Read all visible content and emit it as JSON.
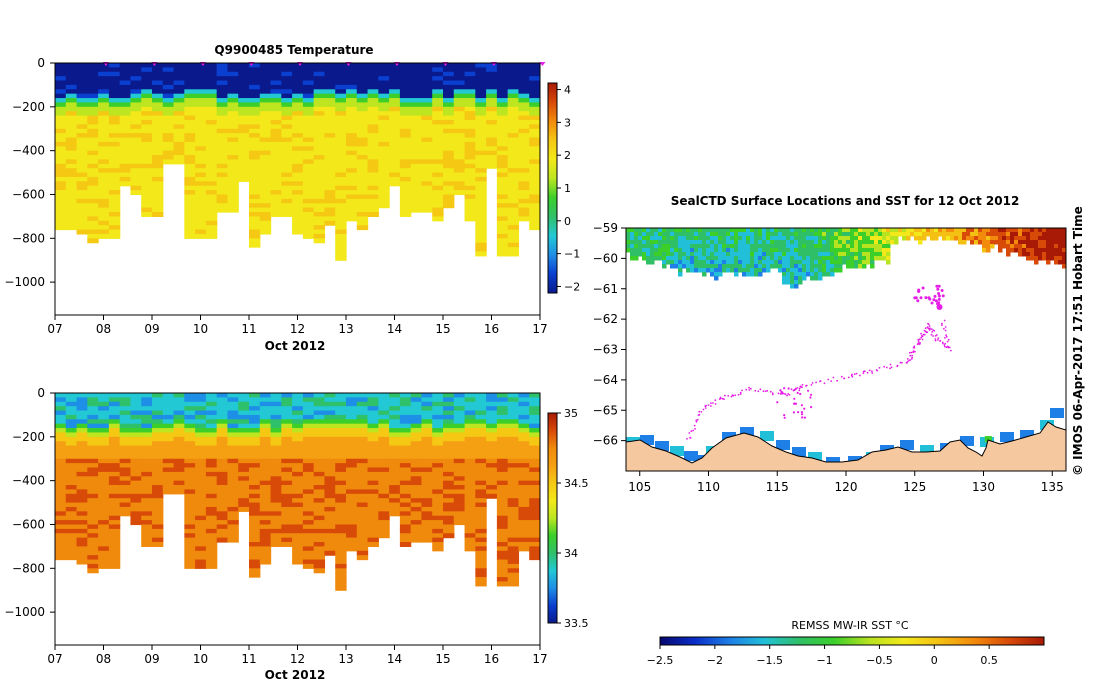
{
  "colors": {
    "temperature": [
      "#0a1a8c",
      "#0a3fd0",
      "#1e8fe6",
      "#22c8d4",
      "#2fc06a",
      "#3ccf2a",
      "#bde620",
      "#f2e81a",
      "#f5c814",
      "#f28a0c",
      "#d84a08",
      "#a81a05"
    ],
    "salinity": [
      "#0a1a8c",
      "#0a3fd0",
      "#1e8fe6",
      "#22c8d4",
      "#2fc06a",
      "#3ccf2a",
      "#bde620",
      "#f2e81a",
      "#f5c814",
      "#f5a012",
      "#f08a0c",
      "#d84a08",
      "#a81a05"
    ],
    "sst": [
      "#07076e",
      "#0a2ec8",
      "#1e7fe6",
      "#22c0d8",
      "#2fbf66",
      "#3ccf2a",
      "#b8e320",
      "#f2e81a",
      "#f5c014",
      "#f28a0c",
      "#d84a08",
      "#a81a05"
    ],
    "land": "#f6c8a0",
    "track": "#e61ee6"
  },
  "chart_data": [
    {
      "type": "heatmap",
      "title": "Q9900485  Temperature",
      "xlabel": "Oct 2012",
      "x_ticks": [
        "07",
        "08",
        "09",
        "10",
        "11",
        "12",
        "13",
        "14",
        "15",
        "16",
        "17"
      ],
      "xlim": [
        7,
        17
      ],
      "y_ticks": [
        0,
        -200,
        -400,
        -600,
        -800,
        -1000
      ],
      "ylim": [
        -1150,
        0
      ],
      "colorbar": {
        "ticks": [
          4,
          3,
          2,
          1,
          0,
          -1,
          -2
        ],
        "range": [
          -2.2,
          4.2
        ]
      },
      "profile_depth_max": [
        750,
        750,
        770,
        810,
        800,
        800,
        560,
        600,
        700,
        700,
        460,
        460,
        800,
        800,
        790,
        680,
        680,
        540,
        830,
        770,
        690,
        690,
        780,
        790,
        810,
        740,
        890,
        720,
        760,
        700,
        650,
        560,
        700,
        680,
        670,
        720,
        660,
        600,
        710,
        870,
        470,
        880,
        880,
        720,
        760
      ],
      "surface_value": -1.6,
      "deep_value": 1.8
    },
    {
      "type": "heatmap",
      "title": "",
      "xlabel": "Oct 2012",
      "x_ticks": [
        "07",
        "08",
        "09",
        "10",
        "11",
        "12",
        "13",
        "14",
        "15",
        "16",
        "17"
      ],
      "xlim": [
        7,
        17
      ],
      "y_ticks": [
        0,
        -200,
        -400,
        -600,
        -800,
        -1000
      ],
      "ylim": [
        -1150,
        0
      ],
      "colorbar": {
        "ticks": [
          35,
          34.5,
          34,
          33.5
        ],
        "range": [
          33.5,
          35
        ]
      },
      "profile_depth_max": [
        750,
        750,
        770,
        810,
        800,
        800,
        560,
        600,
        700,
        700,
        460,
        460,
        800,
        800,
        790,
        680,
        680,
        540,
        830,
        770,
        690,
        690,
        780,
        790,
        810,
        740,
        890,
        720,
        760,
        700,
        650,
        560,
        700,
        680,
        670,
        720,
        660,
        600,
        710,
        870,
        470,
        880,
        880,
        720,
        760
      ],
      "surface_value": 34.0,
      "deep_value": 34.72
    },
    {
      "type": "map",
      "title": "SealCTD Surface Locations and SST for 12 Oct 2012",
      "xlim": [
        104,
        136
      ],
      "ylim": [
        -67,
        -59
      ],
      "x_ticks": [
        105,
        110,
        115,
        120,
        125,
        130,
        135
      ],
      "y_ticks": [
        -59,
        -60,
        -61,
        -62,
        -63,
        -64,
        -65,
        -66
      ],
      "sst_colorbar": {
        "label": "REMSS MW-IR SST °C",
        "ticks": [
          "-2.5",
          "-2",
          "-1.5",
          "-1",
          "-0.5",
          "0",
          "0.5"
        ],
        "range": [
          -2.5,
          1
        ]
      }
    }
  ],
  "stamp": "©  IMOS 06-Apr-2017 17:51 Hobart Time"
}
